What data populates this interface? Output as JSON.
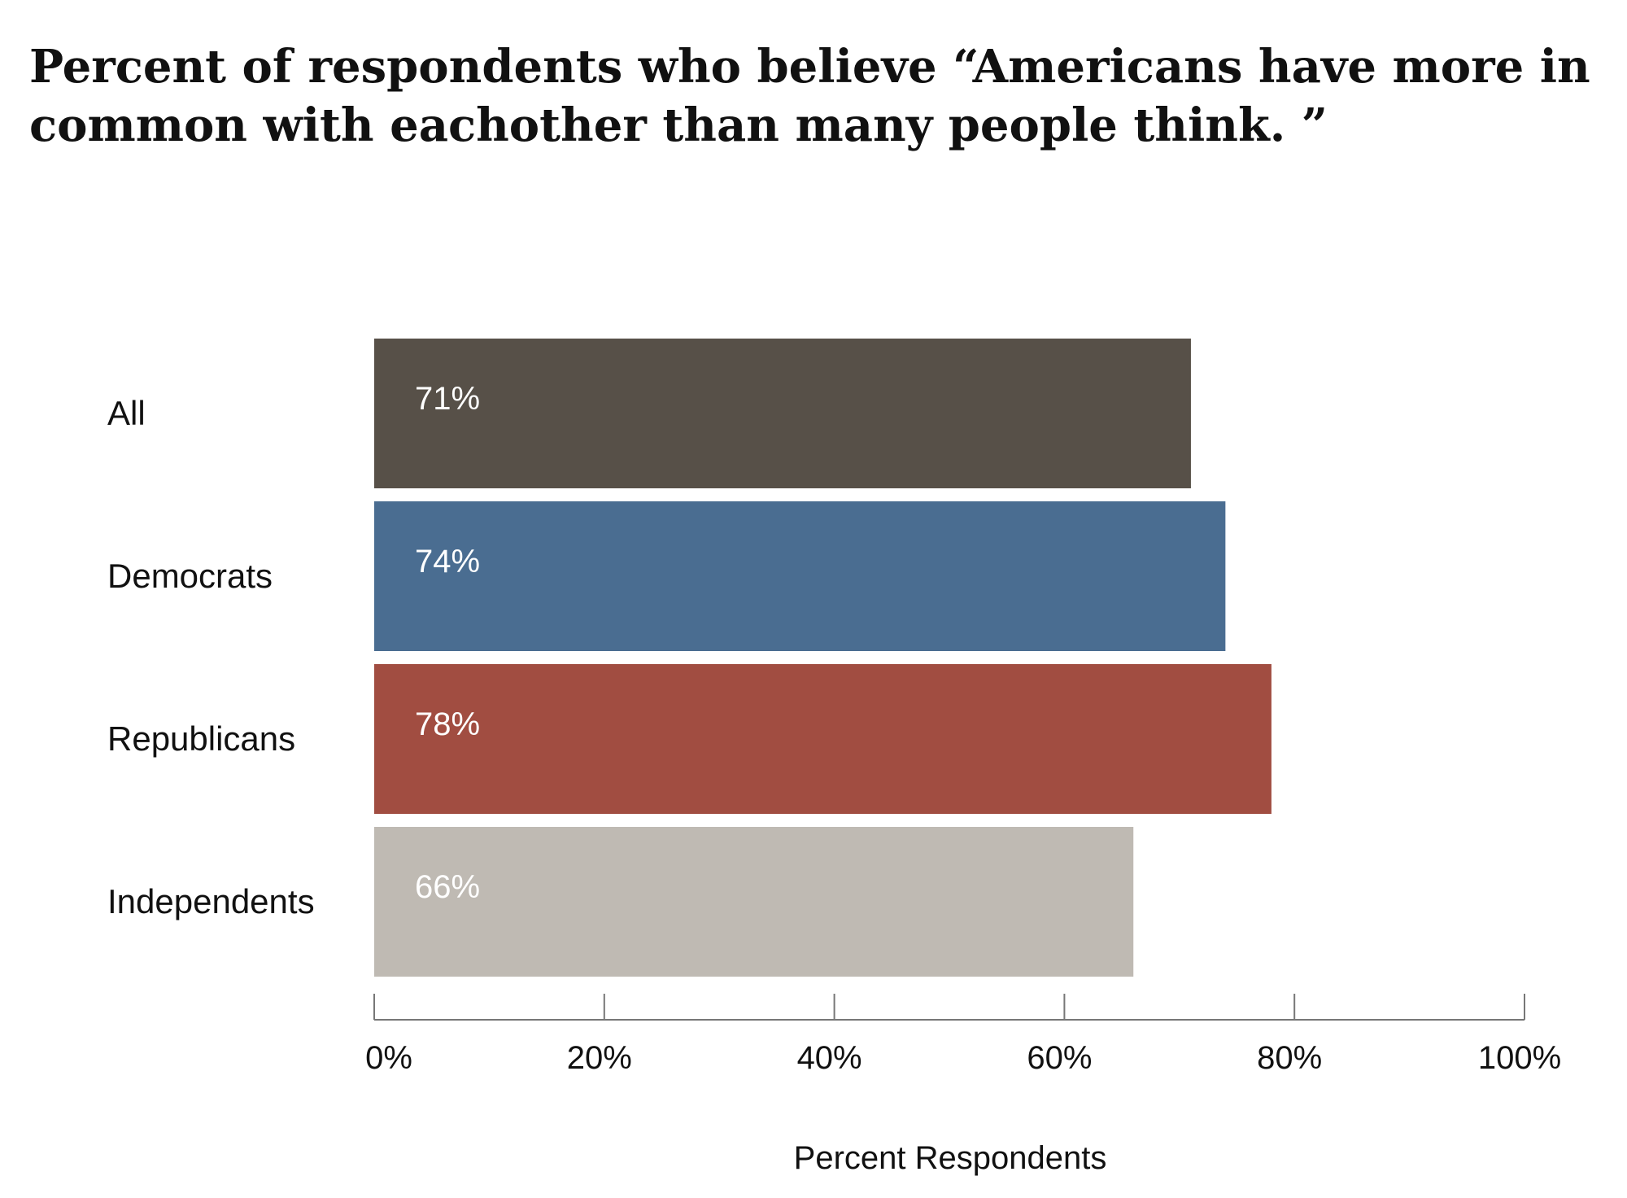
{
  "chart_data": {
    "type": "bar",
    "orientation": "horizontal",
    "title": "Percent of respondents who believe “Americans have more in common with eachother than many people think. ”",
    "xlabel": "Percent Respondents",
    "ylabel": "",
    "xlim": [
      0,
      100
    ],
    "grid": false,
    "legend": "none",
    "categories": [
      "All",
      "Democrats",
      "Republicans",
      "Independents"
    ],
    "values": [
      71,
      74,
      78,
      66
    ],
    "data_labels": [
      "71%",
      "74%",
      "78%",
      "66%"
    ],
    "bar_colors": [
      "#575048",
      "#4a6d91",
      "#a14d41",
      "#bfbab3"
    ],
    "x_ticks": [
      0,
      20,
      40,
      60,
      80,
      100
    ],
    "x_tick_labels": [
      "0%",
      "20%",
      "40%",
      "60%",
      "80%",
      "100%"
    ]
  }
}
